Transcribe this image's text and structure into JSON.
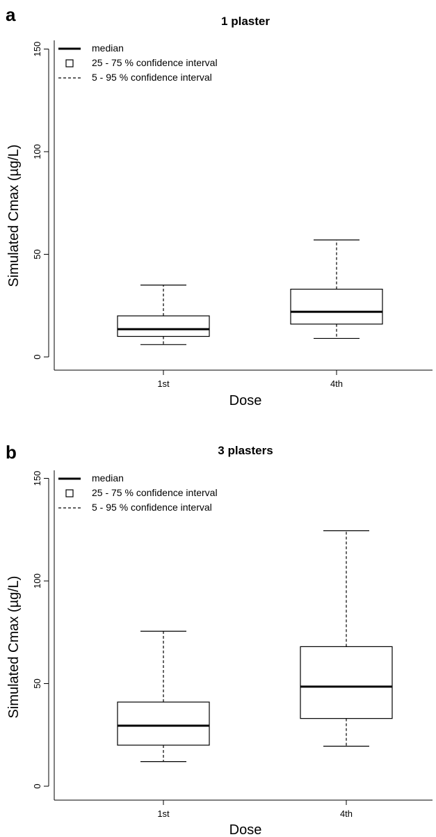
{
  "chart_data": [
    {
      "type": "boxplot",
      "panel_label": "a",
      "title": "1 plaster",
      "xlabel": "Dose",
      "ylabel": "Simulated Cmax (µg/L)",
      "ylim": [
        0,
        150
      ],
      "yticks": [
        0,
        50,
        100,
        150
      ],
      "categories": [
        "1st",
        "4th"
      ],
      "boxes": [
        {
          "category": "1st",
          "whisker_low": 6,
          "q1": 10,
          "median": 13.5,
          "q3": 20,
          "whisker_high": 35
        },
        {
          "category": "4th",
          "whisker_low": 9,
          "q1": 16,
          "median": 22,
          "q3": 33,
          "whisker_high": 57
        }
      ],
      "legend": {
        "position": "top-left",
        "items": [
          {
            "label": "median",
            "symbol": "thick-line"
          },
          {
            "label": "25 - 75 % confidence interval",
            "symbol": "square"
          },
          {
            "label": "5 - 95 % confidence interval",
            "symbol": "dashed-line"
          }
        ]
      },
      "grid": false
    },
    {
      "type": "boxplot",
      "panel_label": "b",
      "title": "3 plasters",
      "xlabel": "Dose",
      "ylabel": "Simulated Cmax (µg/L)",
      "ylim": [
        0,
        150
      ],
      "yticks": [
        0,
        50,
        100,
        150
      ],
      "categories": [
        "1st",
        "4th"
      ],
      "boxes": [
        {
          "category": "1st",
          "whisker_low": 12,
          "q1": 20,
          "median": 29.5,
          "q3": 41,
          "whisker_high": 75.5
        },
        {
          "category": "4th",
          "whisker_low": 19.5,
          "q1": 33,
          "median": 48.5,
          "q3": 68,
          "whisker_high": 124.5
        }
      ],
      "legend": {
        "position": "top-left",
        "items": [
          {
            "label": "median",
            "symbol": "thick-line"
          },
          {
            "label": "25 - 75 % confidence interval",
            "symbol": "square"
          },
          {
            "label": "5 - 95 % confidence interval",
            "symbol": "dashed-line"
          }
        ]
      },
      "grid": false
    }
  ]
}
